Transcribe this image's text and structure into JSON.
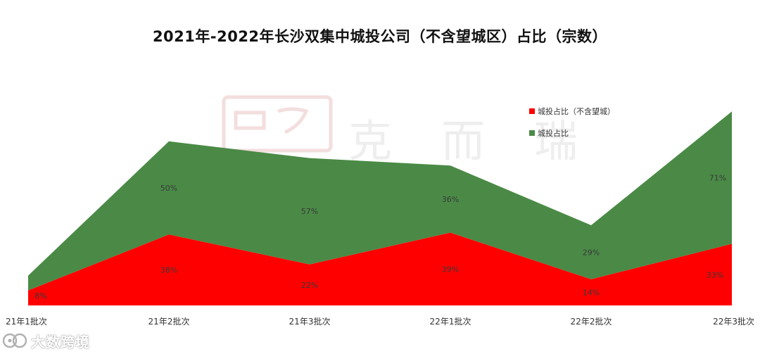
{
  "chart_data": {
    "type": "area",
    "title": "2021年-2022年长沙双集中城投公司（不含望城区）占比（宗数）",
    "categories": [
      "21年1批次",
      "21年2批次",
      "21年3批次",
      "22年1批次",
      "22年2批次",
      "22年3批次"
    ],
    "series": [
      {
        "name": "城投占比（不含望城）",
        "color": "#ff0000",
        "values": [
          8,
          38,
          22,
          39,
          14,
          33
        ],
        "labels": [
          "8%",
          "38%",
          "22%",
          "39%",
          "14%",
          "33%"
        ]
      },
      {
        "name": "城投占比",
        "color": "#4a8a46",
        "values": [
          8,
          50,
          57,
          36,
          29,
          71
        ],
        "labels": [
          "8%",
          "50%",
          "57%",
          "36%",
          "29%",
          "71%"
        ]
      }
    ],
    "stacking": "stacked",
    "legend_position": "top-right",
    "grid": false
  },
  "watermark": {
    "text": "克而瑞"
  },
  "brand": {
    "text": "大数跨境"
  }
}
